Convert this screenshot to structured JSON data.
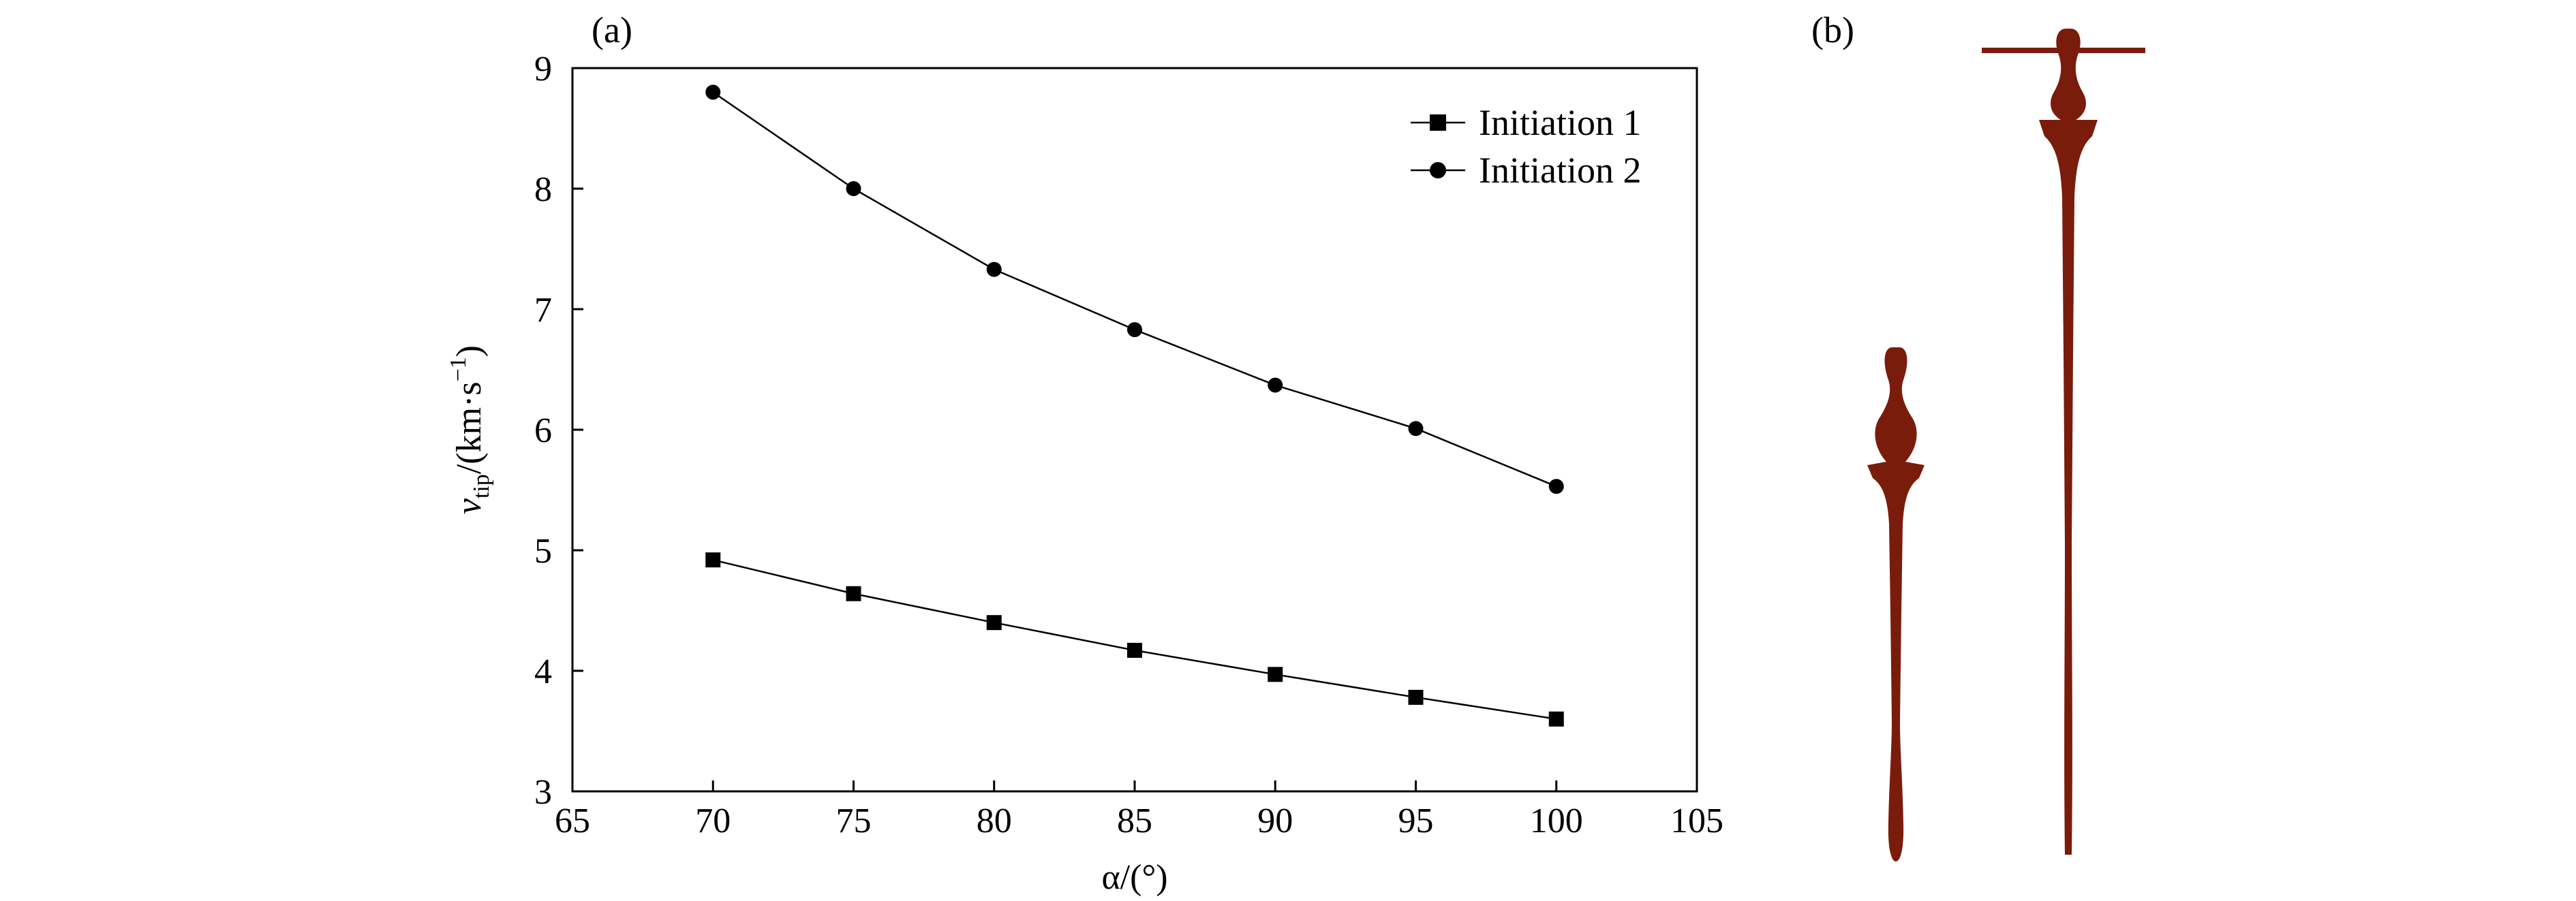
{
  "panels": {
    "a_label": "(a)",
    "b_label": "(b)"
  },
  "chart_data": {
    "type": "line",
    "x_title": "α/(°)",
    "y_title_main": "v",
    "y_title_sub": "tip",
    "y_title_rest": "/(km·s",
    "y_title_sup": "−1",
    "y_title_close": ")",
    "xlim": [
      65,
      105
    ],
    "ylim": [
      3,
      9
    ],
    "xticks": [
      65,
      70,
      75,
      80,
      85,
      90,
      95,
      100,
      105
    ],
    "yticks": [
      3,
      4,
      5,
      6,
      7,
      8,
      9
    ],
    "grid": false,
    "legend_position": "top-right",
    "x": [
      70,
      75,
      80,
      85,
      90,
      95,
      100
    ],
    "series": [
      {
        "name": "Initiation 1",
        "marker": "square",
        "values": [
          4.92,
          4.64,
          4.4,
          4.17,
          3.97,
          3.78,
          3.6
        ]
      },
      {
        "name": "Initiation 2",
        "marker": "circle",
        "values": [
          8.8,
          8.0,
          7.33,
          6.83,
          6.37,
          6.01,
          5.53
        ]
      }
    ]
  },
  "colors": {
    "jet": "#7a1c0c",
    "axis": "#000000"
  }
}
